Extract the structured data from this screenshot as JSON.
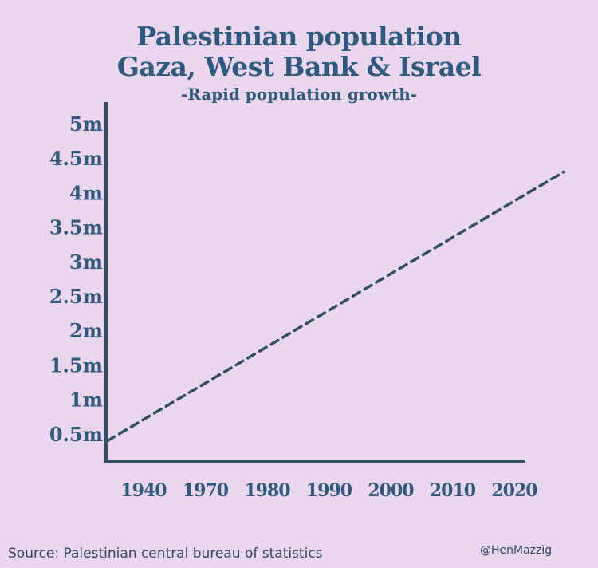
{
  "chart_data": {
    "type": "line",
    "title": "Palestinian population",
    "title_line2": "Gaza, West Bank & Israel",
    "subtitle": "-Rapid population growth-",
    "xlabel": "",
    "ylabel": "",
    "x_tick_labels": [
      "1940",
      "1970",
      "1980",
      "1990",
      "2000",
      "2010",
      "2020"
    ],
    "y_tick_labels": [
      "5m",
      "4.5m",
      "4m",
      "3.5m",
      "3m",
      "2.5m",
      "2m",
      "1.5m",
      "1m",
      "0.5m"
    ],
    "y_tick_values": [
      5,
      4.5,
      4,
      3.5,
      3,
      2.5,
      2,
      1.5,
      1,
      0.5
    ],
    "ylim": [
      0.5,
      5
    ],
    "series": [
      {
        "name": "Palestinian population (millions)",
        "style": "dashed",
        "x_index": [
          0,
          6.8
        ],
        "values": [
          0.4,
          4.3
        ]
      }
    ],
    "grid": false,
    "legend": "none"
  },
  "footer": {
    "source": "Source: Palestinian central bureau of statistics",
    "handle": "@HenMazzig"
  },
  "colors": {
    "background": "#ecd5ef",
    "ink": "#2d5b80",
    "line": "#2f4f66"
  }
}
